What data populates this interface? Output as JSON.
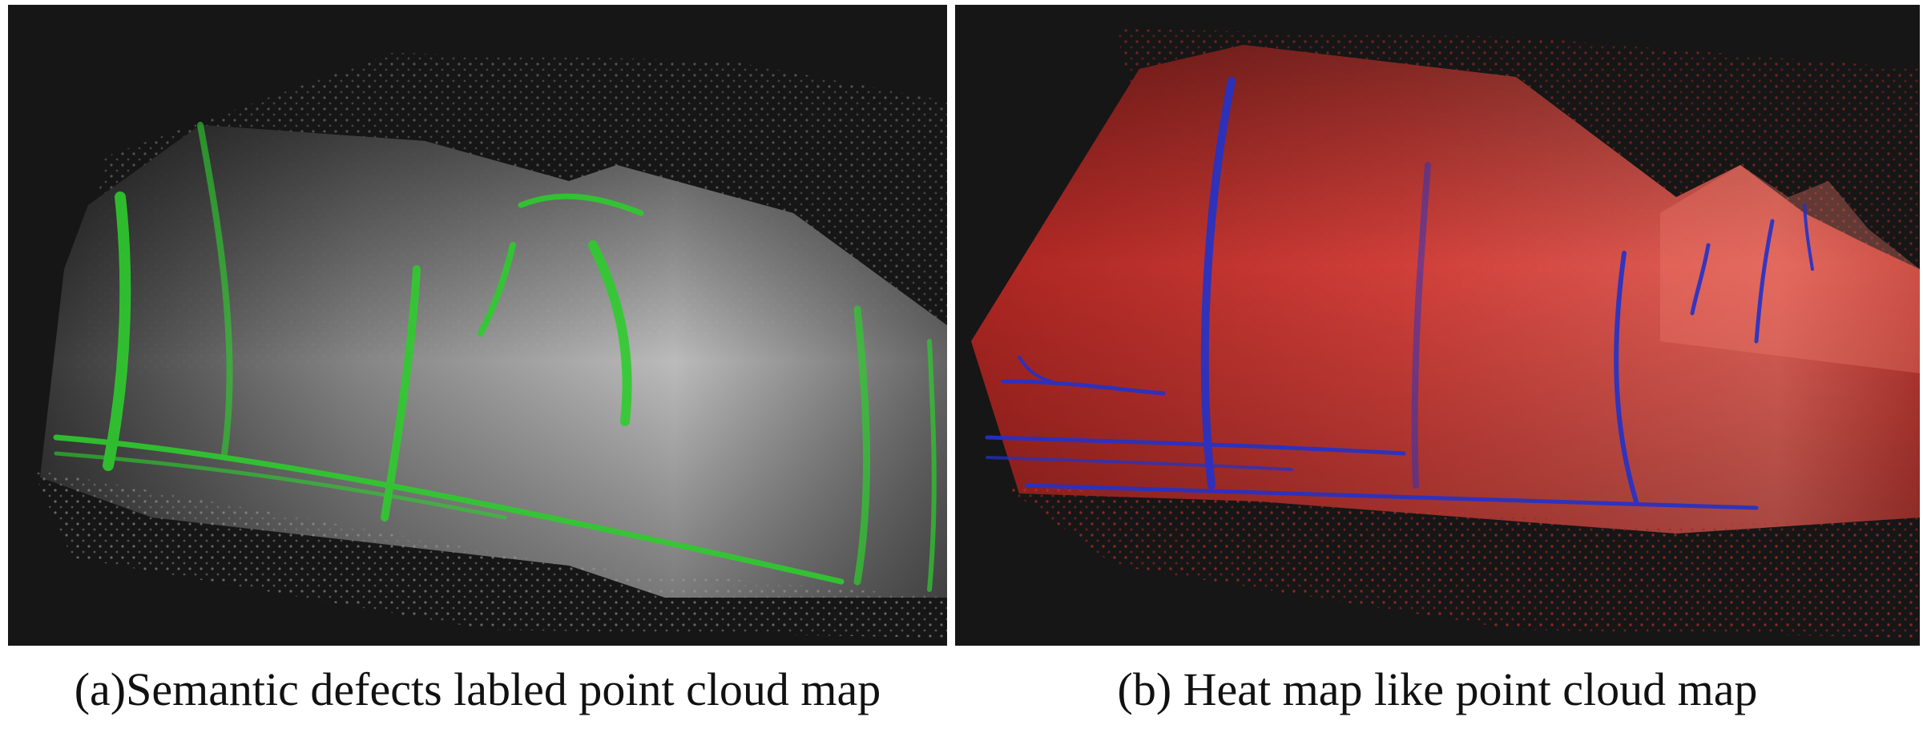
{
  "figure": {
    "panels": [
      {
        "caption": "(a)Semantic defects labled point cloud map",
        "defect_color": "#2ecc2e",
        "surface_color": "#bdbdbd"
      },
      {
        "caption": "(b) Heat map like point cloud map",
        "defect_color": "#2433c8",
        "surface_color": "#d9403a"
      }
    ],
    "background_color": "#161616"
  }
}
